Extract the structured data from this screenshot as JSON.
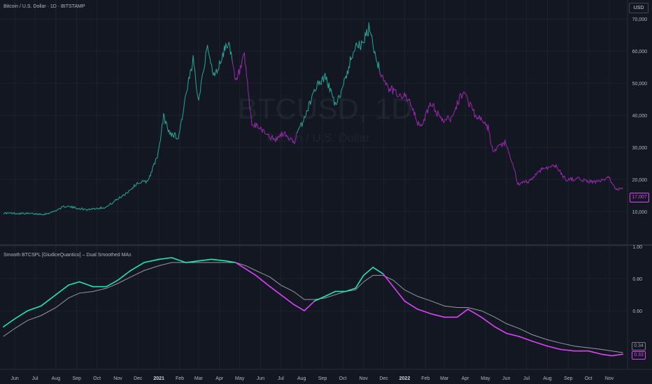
{
  "header": {
    "symbol_title": "Bitcoin / U.S. Dollar · 1D · BITSTAMP",
    "currency_button": "USD"
  },
  "watermark": {
    "symbol": "BTCUSD, 1D",
    "description": "Bitcoin / U.S. Dollar"
  },
  "indicator": {
    "title": "Smooth BTCSPL [GiudiceQuantico] – Dual Smoothed MAs",
    "last_value_slow": "0.34",
    "last_value_fast": "0.33"
  },
  "price_tag": "17,007",
  "colors": {
    "background": "#131722",
    "grid": "#1e222d",
    "bull": "#26a69a",
    "bear": "#9c27b0",
    "ma_bull": "#1de9b6",
    "ma_bear": "#e040fb",
    "ma_slow": "#9598a1"
  },
  "chart_data": [
    {
      "type": "line",
      "title": "Bitcoin / U.S. Dollar · 1D · BITSTAMP",
      "x_unit": "date",
      "x": [
        "2020-05-15",
        "2020-06-15",
        "2020-07-15",
        "2020-07-25",
        "2020-08-15",
        "2020-09-15",
        "2020-10-15",
        "2020-11-15",
        "2020-12-01",
        "2020-12-15",
        "2020-12-25",
        "2021-01-01",
        "2021-01-08",
        "2021-01-15",
        "2021-01-30",
        "2021-02-10",
        "2021-02-21",
        "2021-03-01",
        "2021-03-13",
        "2021-03-25",
        "2021-04-14",
        "2021-04-25",
        "2021-05-08",
        "2021-05-19",
        "2021-06-01",
        "2021-06-22",
        "2021-07-05",
        "2021-07-20",
        "2021-08-05",
        "2021-08-22",
        "2021-09-06",
        "2021-09-21",
        "2021-10-10",
        "2021-10-20",
        "2021-10-30",
        "2021-11-10",
        "2021-11-20",
        "2021-12-04",
        "2021-12-20",
        "2022-01-05",
        "2022-01-24",
        "2022-02-10",
        "2022-02-24",
        "2022-03-10",
        "2022-03-29",
        "2022-04-15",
        "2022-05-05",
        "2022-05-12",
        "2022-05-30",
        "2022-06-13",
        "2022-06-18",
        "2022-07-05",
        "2022-07-25",
        "2022-08-14",
        "2022-08-28",
        "2022-09-15",
        "2022-10-01",
        "2022-10-15",
        "2022-10-31",
        "2022-11-08",
        "2022-11-10",
        "2022-11-21"
      ],
      "y": [
        9500,
        9400,
        9200,
        9700,
        11700,
        10600,
        11400,
        16000,
        19000,
        19400,
        24500,
        29000,
        40000,
        35000,
        33000,
        46000,
        57000,
        45000,
        61000,
        52000,
        63500,
        50000,
        58000,
        37000,
        36000,
        32000,
        34500,
        31500,
        39000,
        49000,
        52000,
        42500,
        55000,
        62500,
        61500,
        67500,
        57500,
        49000,
        47000,
        45500,
        36000,
        44000,
        38500,
        39000,
        47500,
        40500,
        36000,
        28500,
        31500,
        23000,
        18500,
        19500,
        23500,
        24200,
        20000,
        20200,
        19400,
        19200,
        20500,
        18500,
        17000,
        17007
      ],
      "ylim": [
        0,
        72000
      ],
      "y_ticks": [
        "10,000",
        "20,000",
        "30,000",
        "40,000",
        "50,000",
        "60,000",
        "70,000"
      ],
      "series": [
        {
          "name": "BTCUSD"
        }
      ]
    },
    {
      "type": "line",
      "title": "Smooth BTCSPL [GiudiceQuantico] – Dual Smoothed MAs",
      "x_unit": "date",
      "x": [
        "2020-05-15",
        "2020-06-01",
        "2020-06-20",
        "2020-07-10",
        "2020-08-01",
        "2020-08-20",
        "2020-09-05",
        "2020-09-25",
        "2020-10-15",
        "2020-11-01",
        "2020-11-20",
        "2020-12-10",
        "2021-01-01",
        "2021-01-20",
        "2021-02-10",
        "2021-03-01",
        "2021-03-20",
        "2021-04-10",
        "2021-04-25",
        "2021-05-10",
        "2021-05-25",
        "2021-06-15",
        "2021-07-01",
        "2021-07-20",
        "2021-08-05",
        "2021-08-20",
        "2021-09-05",
        "2021-09-20",
        "2021-10-05",
        "2021-10-20",
        "2021-11-01",
        "2021-11-15",
        "2021-11-30",
        "2021-12-15",
        "2022-01-01",
        "2022-01-20",
        "2022-02-10",
        "2022-03-01",
        "2022-03-20",
        "2022-04-05",
        "2022-04-25",
        "2022-05-15",
        "2022-06-01",
        "2022-06-20",
        "2022-07-10",
        "2022-08-01",
        "2022-08-20",
        "2022-09-10",
        "2022-10-01",
        "2022-10-20",
        "2022-11-05",
        "2022-11-21"
      ],
      "ylim": [
        0.24,
        1.0
      ],
      "y_ticks": [
        "0.60",
        "0.80",
        "1.00"
      ],
      "x_tick_labels": [
        "Jun",
        "Jul",
        "Aug",
        "Sep",
        "Oct",
        "Nov",
        "Dec",
        "2021",
        "Feb",
        "Mar",
        "Apr",
        "May",
        "Jun",
        "Jul",
        "Aug",
        "Sep",
        "Oct",
        "Nov",
        "Dec",
        "2022",
        "Feb",
        "Mar",
        "Apr",
        "May",
        "Jun",
        "Jul",
        "Aug",
        "Sep",
        "Oct",
        "Nov"
      ],
      "series": [
        {
          "values": [
            0.5,
            0.55,
            0.6,
            0.63,
            0.7,
            0.76,
            0.78,
            0.75,
            0.75,
            0.79,
            0.85,
            0.9,
            0.92,
            0.93,
            0.9,
            0.91,
            0.92,
            0.91,
            0.9,
            0.86,
            0.82,
            0.75,
            0.7,
            0.64,
            0.6,
            0.66,
            0.69,
            0.72,
            0.72,
            0.74,
            0.82,
            0.87,
            0.83,
            0.75,
            0.66,
            0.61,
            0.58,
            0.56,
            0.56,
            0.61,
            0.56,
            0.5,
            0.46,
            0.44,
            0.41,
            0.38,
            0.36,
            0.35,
            0.35,
            0.33,
            0.32,
            0.33
          ]
        },
        {
          "values": [
            0.44,
            0.49,
            0.54,
            0.57,
            0.62,
            0.68,
            0.71,
            0.72,
            0.74,
            0.77,
            0.81,
            0.85,
            0.88,
            0.9,
            0.9,
            0.9,
            0.9,
            0.9,
            0.9,
            0.88,
            0.85,
            0.81,
            0.76,
            0.72,
            0.67,
            0.67,
            0.68,
            0.7,
            0.72,
            0.73,
            0.78,
            0.82,
            0.82,
            0.79,
            0.73,
            0.69,
            0.66,
            0.63,
            0.62,
            0.62,
            0.6,
            0.56,
            0.52,
            0.49,
            0.45,
            0.42,
            0.4,
            0.38,
            0.37,
            0.36,
            0.35,
            0.34
          ]
        }
      ]
    }
  ]
}
